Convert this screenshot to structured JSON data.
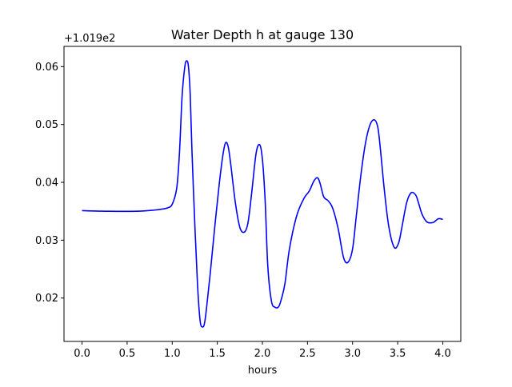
{
  "chart_data": {
    "type": "line",
    "title": "Water Depth h at gauge 130",
    "xlabel": "hours",
    "ylabel": "",
    "y_offset_text": "+1.019e2",
    "xlim": [
      -0.2,
      4.2
    ],
    "ylim": [
      0.0125,
      0.0635
    ],
    "x_ticks": [
      0.0,
      0.5,
      1.0,
      1.5,
      2.0,
      2.5,
      3.0,
      3.5,
      4.0
    ],
    "x_tick_labels": [
      "0.0",
      "0.5",
      "1.0",
      "1.5",
      "2.0",
      "2.5",
      "3.0",
      "3.5",
      "4.0"
    ],
    "y_ticks": [
      0.02,
      0.03,
      0.04,
      0.05,
      0.06
    ],
    "y_tick_labels": [
      "0.02",
      "0.03",
      "0.04",
      "0.05",
      "0.06"
    ],
    "grid": false,
    "legend": "none",
    "series": [
      {
        "color": "#0000ff",
        "x": [
          0.0,
          0.3,
          0.6,
          0.8,
          0.9,
          0.95,
          1.0,
          1.05,
          1.08,
          1.11,
          1.14,
          1.16,
          1.18,
          1.2,
          1.22,
          1.25,
          1.28,
          1.31,
          1.34,
          1.36,
          1.38,
          1.42,
          1.47,
          1.52,
          1.56,
          1.59,
          1.62,
          1.65,
          1.7,
          1.75,
          1.8,
          1.84,
          1.88,
          1.93,
          1.97,
          2.0,
          2.03,
          2.06,
          2.1,
          2.14,
          2.18,
          2.21,
          2.25,
          2.3,
          2.38,
          2.46,
          2.52,
          2.57,
          2.61,
          2.64,
          2.68,
          2.73,
          2.78,
          2.84,
          2.9,
          2.95,
          3.0,
          3.04,
          3.09,
          3.14,
          3.19,
          3.24,
          3.28,
          3.31,
          3.35,
          3.4,
          3.46,
          3.51,
          3.55,
          3.6,
          3.65,
          3.7,
          3.73,
          3.77,
          3.82,
          3.86,
          3.9,
          3.95,
          4.0
        ],
        "y": [
          0.0351,
          0.035,
          0.035,
          0.0352,
          0.0354,
          0.0356,
          0.0362,
          0.039,
          0.045,
          0.055,
          0.06,
          0.061,
          0.06,
          0.055,
          0.045,
          0.033,
          0.0225,
          0.016,
          0.015,
          0.0158,
          0.0182,
          0.024,
          0.032,
          0.0395,
          0.0445,
          0.0468,
          0.0462,
          0.043,
          0.0365,
          0.0322,
          0.0314,
          0.033,
          0.038,
          0.045,
          0.0465,
          0.044,
          0.037,
          0.0255,
          0.0195,
          0.0184,
          0.0185,
          0.0198,
          0.0225,
          0.0285,
          0.0342,
          0.0372,
          0.0385,
          0.0402,
          0.0408,
          0.0398,
          0.0375,
          0.0368,
          0.0355,
          0.032,
          0.027,
          0.0262,
          0.0285,
          0.034,
          0.041,
          0.0465,
          0.0498,
          0.0508,
          0.0495,
          0.0455,
          0.039,
          0.0325,
          0.0288,
          0.0295,
          0.0325,
          0.0365,
          0.0382,
          0.0378,
          0.0365,
          0.0345,
          0.0332,
          0.033,
          0.0331,
          0.0337,
          0.0336
        ]
      }
    ]
  }
}
